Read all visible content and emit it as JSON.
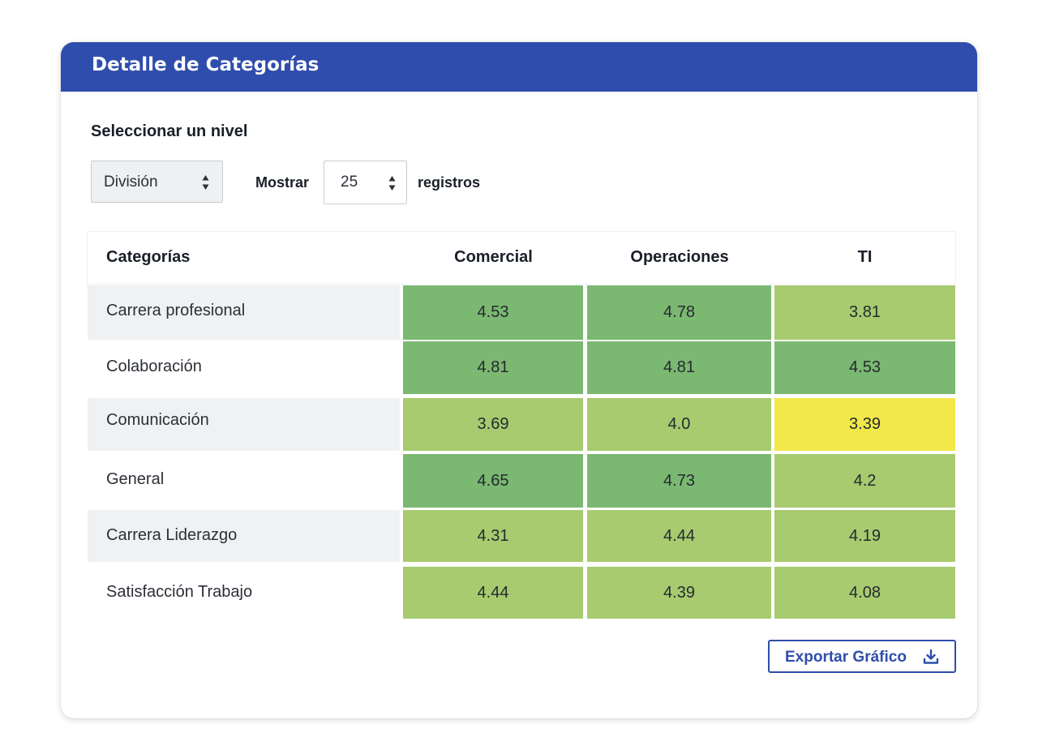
{
  "card": {
    "title": "Detalle de Categorías"
  },
  "controls": {
    "level_label": "Seleccionar un nivel",
    "level_value": "División",
    "show_label": "Mostrar",
    "count_value": "25",
    "records_label": "registros"
  },
  "table": {
    "headers": [
      "Categorías",
      "Comercial",
      "Operaciones",
      "TI"
    ],
    "rows": [
      {
        "category": "Carrera profesional",
        "values": [
          "4.53",
          "4.78",
          "3.81"
        ]
      },
      {
        "category": "Colaboración",
        "values": [
          "4.81",
          "4.81",
          "4.53"
        ]
      },
      {
        "category": "Comunicación",
        "values": [
          "3.69",
          "4.0",
          "3.39"
        ]
      },
      {
        "category": "General",
        "values": [
          "4.65",
          "4.73",
          "4.2"
        ]
      },
      {
        "category": "Carrera Liderazgo",
        "values": [
          "4.31",
          "4.44",
          "4.19"
        ]
      },
      {
        "category": "Satisfacción Trabajo",
        "values": [
          "4.44",
          "4.39",
          "4.08"
        ]
      }
    ]
  },
  "export": {
    "label": "Exportar Gráfico",
    "icon": "download-icon"
  },
  "colors": {
    "header_blue": "#2f4dac",
    "dark_green": "#7bb871",
    "light_green": "#a7cb6e",
    "yellow": "#f2e84a",
    "row_shade": "#f0f1f3"
  }
}
